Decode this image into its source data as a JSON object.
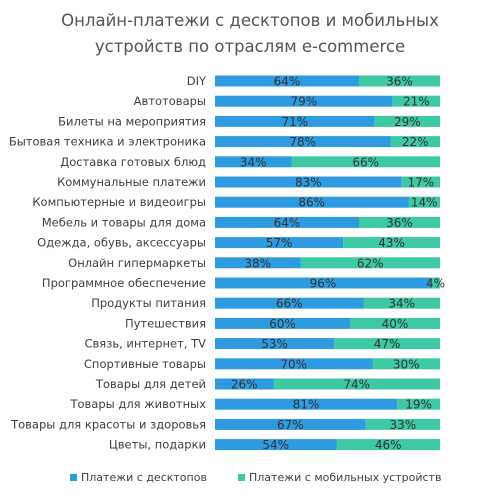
{
  "chart_data": {
    "type": "bar",
    "stacked": true,
    "orientation": "horizontal",
    "title_lines": [
      "Онлайн-платежи с десктопов и мобильных",
      "устройств по отраслям e-commerce"
    ],
    "categories": [
      "DIY",
      "Автотовары",
      "Билеты на мероприятия",
      "Бытовая техника и электроника",
      "Доставка готовых блюд",
      "Коммунальные платежи",
      "Компьютерные и видеоигры",
      "Мебель и товары для дома",
      "Одежда, обувь, аксессуары",
      "Онлайн гипермаркеты",
      "Программное обеспечение",
      "Продукты питания",
      "Путешествия",
      "Связь, интернет, TV",
      "Спортивные товары",
      "Товары для детей",
      "Товары для животных",
      "Товары для красоты и здоровья",
      "Цветы, подарки"
    ],
    "series": [
      {
        "name": "Платежи с десктопов",
        "color": "#2E9BE0",
        "values": [
          64,
          79,
          71,
          78,
          34,
          83,
          86,
          64,
          57,
          38,
          96,
          66,
          60,
          53,
          70,
          26,
          81,
          67,
          54
        ],
        "labels": [
          "64%",
          "79%",
          "71%",
          "78%",
          "34%",
          "83%",
          "86%",
          "64%",
          "57%",
          "38%",
          "96%",
          "66%",
          "60%",
          "53%",
          "70%",
          "26%",
          "81%",
          "67%",
          "54%"
        ]
      },
      {
        "name": "Платежи с мобильных устройств",
        "color": "#3DC9A3",
        "values": [
          36,
          21,
          29,
          22,
          66,
          17,
          14,
          36,
          43,
          62,
          4,
          34,
          40,
          47,
          30,
          74,
          19,
          33,
          46
        ],
        "labels": [
          "36%",
          "21%",
          "29%",
          "22%",
          "66%",
          "17%",
          "14%",
          "36%",
          "43%",
          "62%",
          "4%",
          "34%",
          "40%",
          "47%",
          "30%",
          "74%",
          "19%",
          "33%",
          "46%"
        ]
      }
    ],
    "xlim": [
      0,
      100
    ],
    "legend_position": "bottom"
  }
}
